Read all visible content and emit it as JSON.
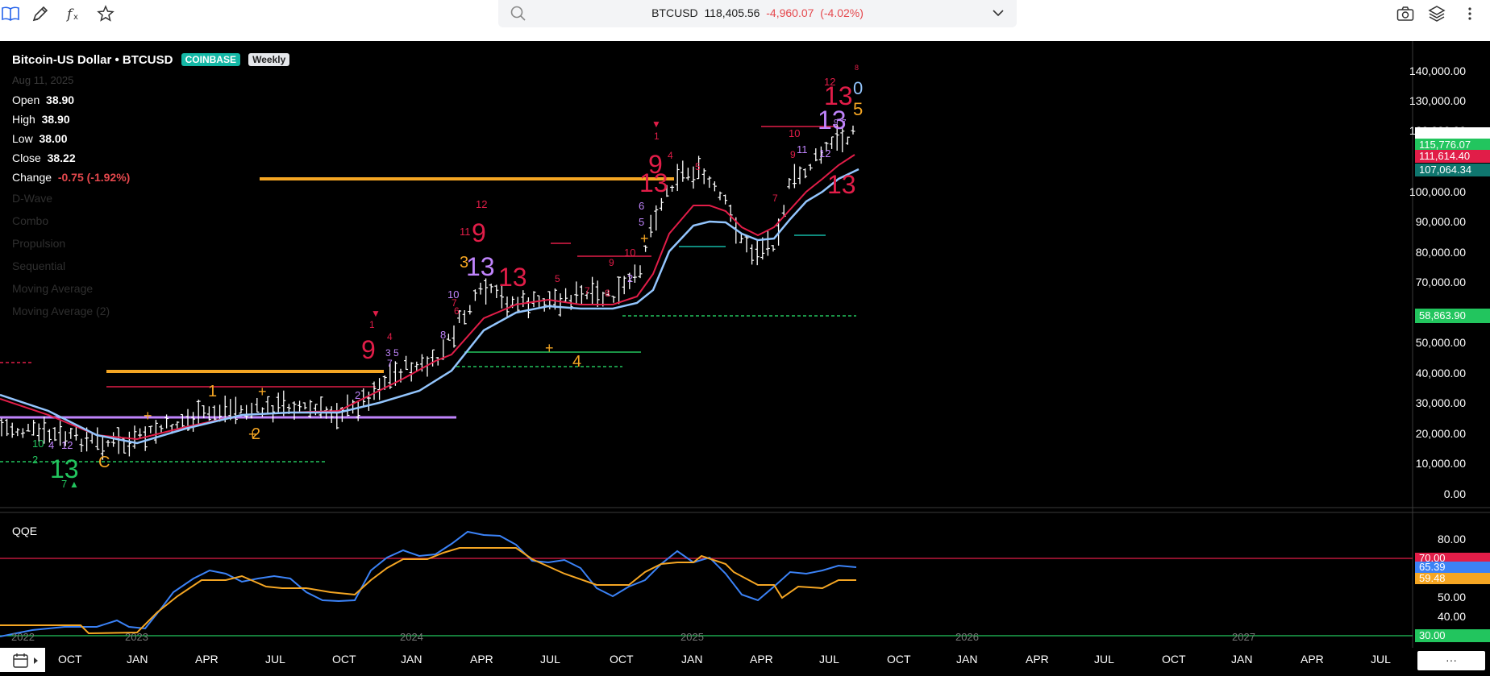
{
  "toolbar": {
    "icons": [
      "book-icon",
      "pencil-icon",
      "function-icon",
      "star-icon",
      "camera-icon",
      "layers-icon",
      "more-vertical-icon"
    ]
  },
  "search": {
    "symbol": "BTCUSD",
    "price": "118,405.56",
    "change": "-4,960.07",
    "change_pct": "(-4.02%)"
  },
  "legend": {
    "title": "Bitcoin-US Dollar • BTCUSD",
    "exchange": "COINBASE",
    "interval": "Weekly",
    "date": "Aug 11, 2025",
    "open_label": "Open",
    "open": "38.90",
    "high_label": "High",
    "high": "38.90",
    "low_label": "Low",
    "low": "38.00",
    "close_label": "Close",
    "close": "38.22",
    "change_label": "Change",
    "change": "-0.75 (-1.92%)",
    "studies": [
      "D-Wave",
      "Combo",
      "Propulsion",
      "Sequential",
      "Moving Average",
      "Moving Average (2)"
    ]
  },
  "price_axis": [
    "140,000.00",
    "130,000.00",
    "120,000.00",
    "100,000.00",
    "90,000.00",
    "80,000.00",
    "70,000.00",
    "50,000.00",
    "40,000.00",
    "30,000.00",
    "20,000.00",
    "10,000.00",
    "0.00"
  ],
  "price_tags": {
    "t1": "115,776.07",
    "t2": "111,614.40",
    "t3": "107,064.34",
    "t4": "58,863.90"
  },
  "qqe": {
    "title": "QQE",
    "axis": [
      "80.00",
      "50.00",
      "40.00"
    ],
    "tag_70": "70.00",
    "tag_blue": "65.39",
    "tag_orange": "59.48",
    "tag_30": "30.00"
  },
  "time_axis": {
    "months": [
      "OCT",
      "JAN",
      "APR",
      "JUL",
      "OCT",
      "JAN",
      "APR",
      "JUL",
      "OCT",
      "JAN",
      "APR",
      "JUL",
      "OCT",
      "JAN",
      "APR",
      "JUL",
      "OCT",
      "JAN",
      "APR",
      "JUL"
    ],
    "years": [
      "2022",
      "2023",
      "2024",
      "2025",
      "2026",
      "2027"
    ]
  },
  "bottom": {
    "more": "···"
  },
  "colors": {
    "green": "#22c55e",
    "red": "#e11d48",
    "orange": "#f5a623",
    "blue": "#60a5fa",
    "purple": "#c084fc",
    "teal": "#14b8a6"
  }
}
